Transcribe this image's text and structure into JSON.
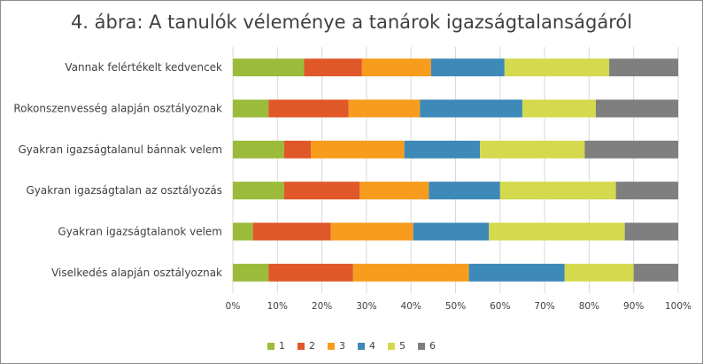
{
  "chart_data": {
    "type": "bar",
    "orientation": "horizontal",
    "stacked": "percent",
    "title": "4. ábra: A tanulók  véleménye a tanárok igazságtalanságáról",
    "categories": [
      "Vannak felértékelt kedvencek",
      "Rokonszenvesség alapján osztályoznak",
      "Gyakran igazságtalanul bánnak velem",
      "Gyakran igazságtalan az osztályozás",
      "Gyakran igazságtalanok velem",
      "Viselkedés alapján osztályoznak"
    ],
    "series": [
      {
        "name": "1",
        "color": "#9bbb3b",
        "values": [
          16,
          8,
          11.5,
          11.5,
          4.5,
          8
        ]
      },
      {
        "name": "2",
        "color": "#e0582a",
        "values": [
          13,
          18,
          6,
          17,
          17.5,
          19
        ]
      },
      {
        "name": "3",
        "color": "#f79c1c",
        "values": [
          15.5,
          16,
          21,
          15.5,
          18.5,
          26
        ]
      },
      {
        "name": "4",
        "color": "#3d89b8",
        "values": [
          16.5,
          23,
          17,
          16,
          17,
          21.5
        ]
      },
      {
        "name": "5",
        "color": "#d4d94d",
        "values": [
          23.5,
          16.5,
          23.5,
          26,
          30.5,
          15.5
        ]
      },
      {
        "name": "6",
        "color": "#7f7f7f",
        "values": [
          15.5,
          18.5,
          21,
          14,
          12,
          10
        ]
      }
    ],
    "x_ticks": [
      "0%",
      "10%",
      "20%",
      "30%",
      "40%",
      "50%",
      "60%",
      "70%",
      "80%",
      "90%",
      "100%"
    ],
    "xlim": [
      0,
      100
    ],
    "grid": true,
    "legend_position": "bottom"
  }
}
